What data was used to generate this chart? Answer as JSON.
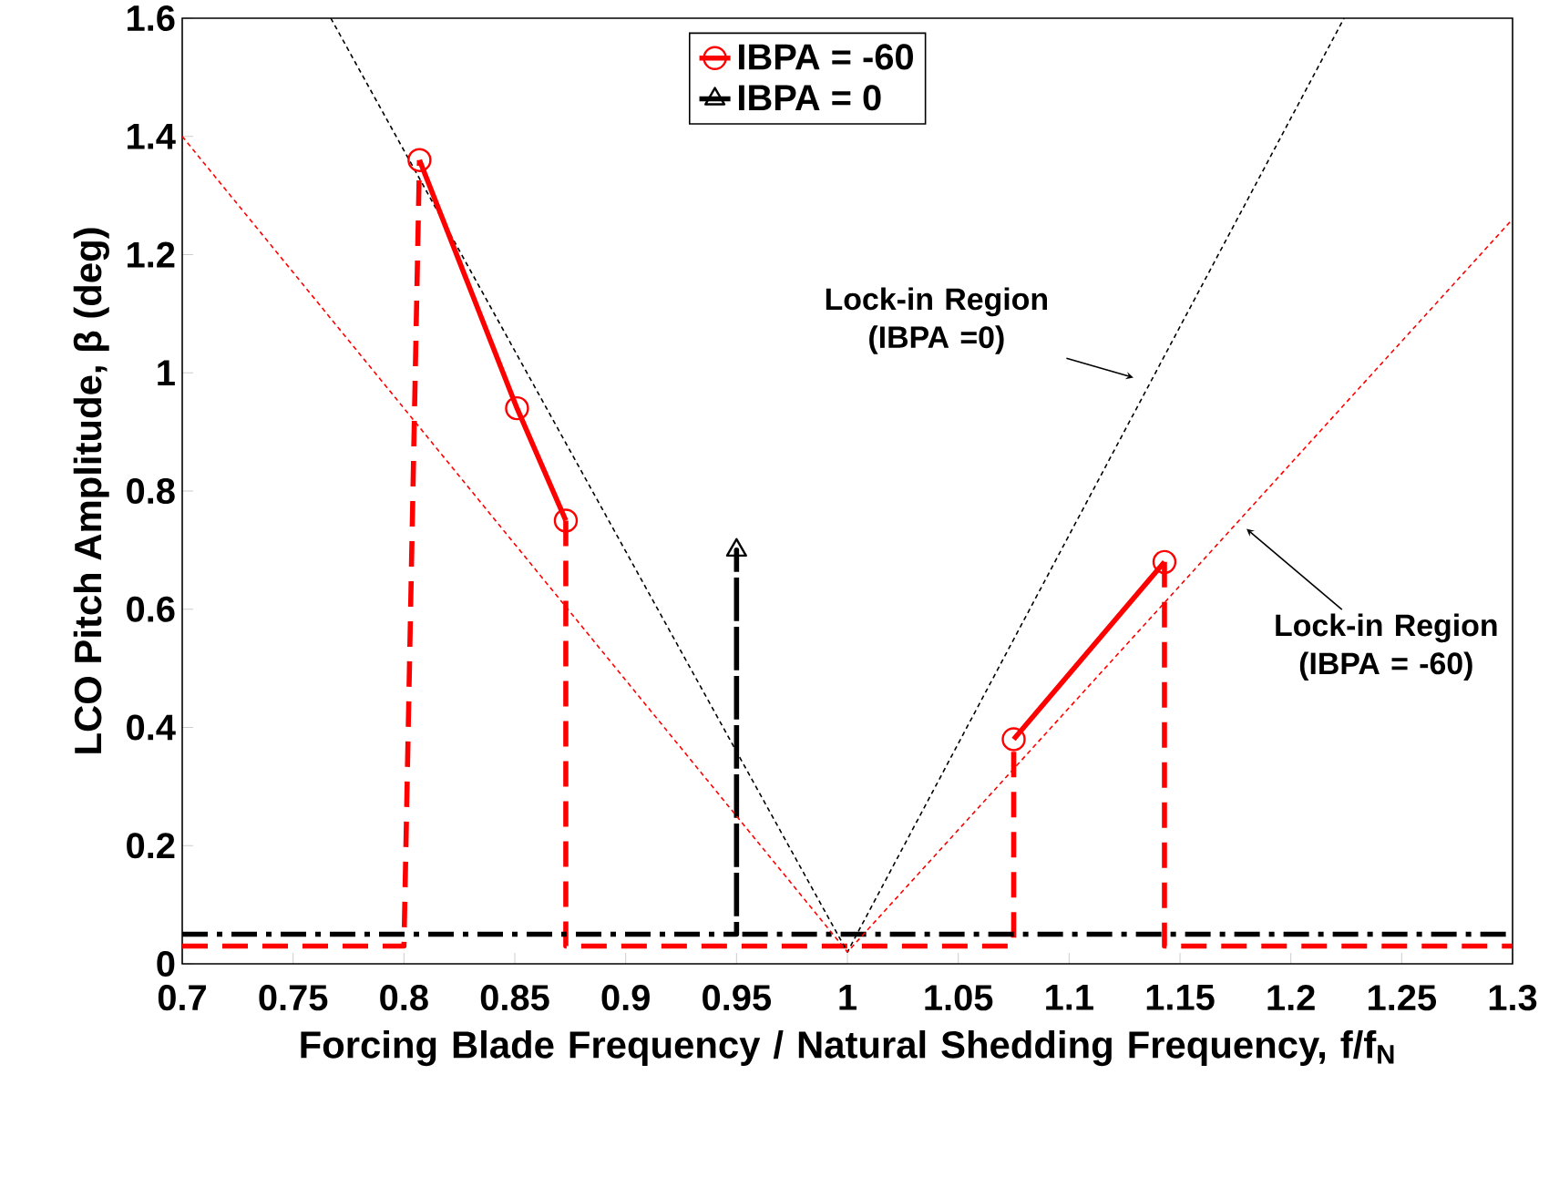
{
  "chart_data": {
    "type": "line",
    "xlabel": "Forcing Blade Frequency / Natural Shedding Frequency, f/f$_{N}$",
    "ylabel": "LCO Pitch Amplitude, β (deg)",
    "xlim": [
      0.7,
      1.3
    ],
    "ylim": [
      0,
      1.6
    ],
    "xticks": [
      0.7,
      0.75,
      0.8,
      0.85,
      0.9,
      0.95,
      1,
      1.05,
      1.1,
      1.15,
      1.2,
      1.25,
      1.3
    ],
    "yticks": [
      0,
      0.2,
      0.4,
      0.6,
      0.8,
      1,
      1.2,
      1.4,
      1.6
    ],
    "grid": false,
    "legend": "top",
    "series": [
      {
        "name": "IBPA = -60",
        "color": "#ff0000",
        "x": [
          0.807,
          0.851,
          0.873,
          0.97,
          1.075,
          1.143
        ],
        "values": [
          1.36,
          0.94,
          0.75,
          null,
          0.38,
          0.68
        ],
        "marker": "circle",
        "line_style": "solid"
      },
      {
        "name": "IBPA = 0",
        "color": "#000000",
        "x": [
          0.95
        ],
        "values": [
          0.7
        ],
        "marker": "triangle",
        "line_style": "solid"
      },
      {
        "color": "#ff0000",
        "x": [
          0.7,
          0.8,
          0.807,
          0.84,
          0.873,
          0.873,
          1.075,
          1.075,
          1.1,
          1.143,
          1.143,
          1.3
        ],
        "values": [
          0.03,
          0.03,
          1.36,
          null,
          0.75,
          0.03,
          0.03,
          0.38,
          null,
          0.68,
          0.03,
          0.03
        ],
        "marker": "none",
        "line_style": "dashed"
      },
      {
        "color": "#000000",
        "x": [
          0.7,
          0.95,
          0.95,
          0.95,
          1.3
        ],
        "values": [
          0.05,
          0.05,
          0.7,
          0.05,
          0.05
        ],
        "marker": "none",
        "line_style": "dashdot"
      },
      {
        "color": "#000000",
        "x": [
          0.767,
          1.0,
          1.224
        ],
        "values": [
          1.6,
          0.02,
          1.6
        ],
        "marker": "none",
        "line_style": "dotted"
      },
      {
        "color": "#ff0000",
        "x": [
          0.7,
          1.0,
          1.3
        ],
        "values": [
          1.4,
          0.02,
          1.26
        ],
        "marker": "none",
        "line_style": "dotted"
      }
    ],
    "annotations": [
      "Lock-in Region (IBPA =0)",
      "Lock-in Region (IBPA = -60)"
    ]
  }
}
